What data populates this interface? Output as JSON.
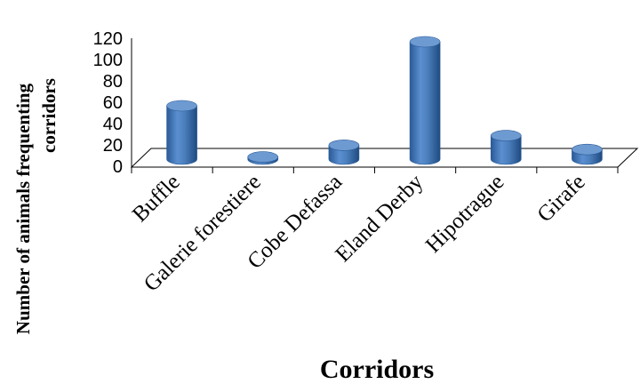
{
  "chart_data": {
    "type": "bar",
    "categories": [
      "Buffle",
      "Galerie forestiere",
      "Cobe Defassa",
      "Eland Derby",
      "Hipotrague",
      "Girafe"
    ],
    "values": [
      50,
      2,
      13,
      110,
      22,
      9
    ],
    "xlabel": "Corridors",
    "ylabel_lines": [
      "Number of animals frequenting",
      "corridors"
    ],
    "ylim": [
      0,
      120
    ],
    "yticks": [
      "0",
      "20",
      "40",
      "60",
      "80",
      "100",
      "120"
    ],
    "bar_color": "#4a7ebb",
    "grid": false,
    "legend": "none",
    "style": "3d-cylinder"
  }
}
